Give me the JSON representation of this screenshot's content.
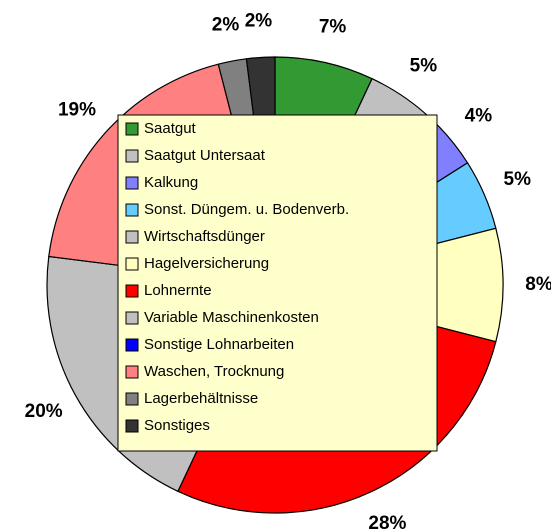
{
  "chart_data": {
    "type": "pie",
    "categories": [
      "Saatgut",
      "Saatgut Untersaat",
      "Kalkung",
      "Sonst. Düngem. u. Bodenverb.",
      "Wirtschaftsdünger",
      "Hagelversicherung",
      "Lohnernte",
      "Variable Maschinenkosten",
      "Sonstige Lohnarbeiten",
      "Waschen, Trocknung",
      "Lagerbehältnisse",
      "Sonstiges"
    ],
    "values": [
      7,
      5,
      4,
      5,
      0,
      8,
      28,
      20,
      0,
      19,
      2,
      2
    ],
    "value_labels": [
      "7%",
      "5%",
      "4%",
      "5%",
      null,
      "8%",
      "28%",
      "20%",
      null,
      "19%",
      "2%",
      "2%"
    ],
    "colors": [
      "#339933",
      "#c0c0c0",
      "#8080ff",
      "#66ccff",
      "#c0c0c0",
      "#ffffc0",
      "#ff0000",
      "#c0c0c0",
      "#0000ff",
      "#ff8080",
      "#808080",
      "#333333"
    ],
    "legend": "center"
  }
}
